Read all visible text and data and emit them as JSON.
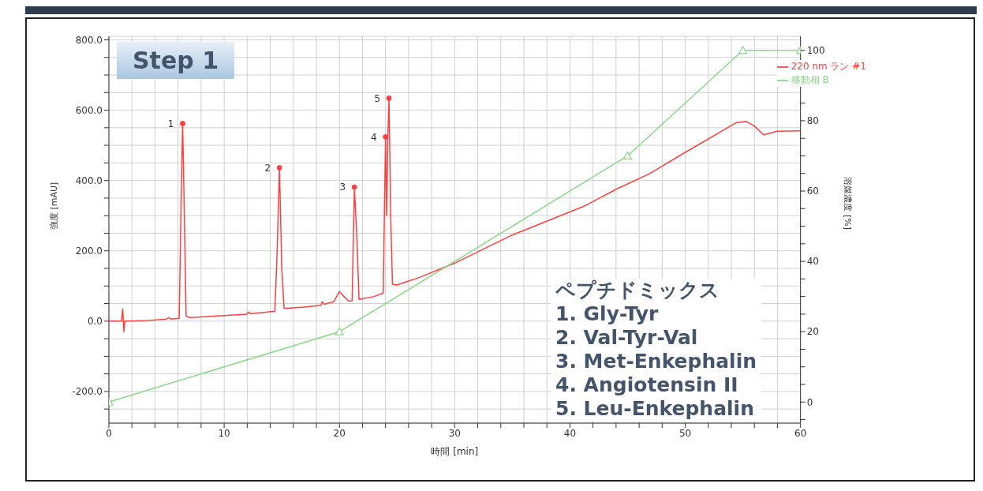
{
  "chart_data": {
    "type": "line",
    "title": "Step 1",
    "xlabel": "時間 [min]",
    "ylabel": "強度 [mAU]",
    "y2label": "溶媒濃度 [%]",
    "series": [
      {
        "name": "220 nm ラン #1",
        "color": "#ff4040",
        "marker": "none",
        "x": [
          0,
          1.1,
          1.2,
          1.3,
          1.4,
          3,
          5,
          5.2,
          5.4,
          6.1,
          6.3,
          6.4,
          6.55,
          6.7,
          7,
          10,
          12,
          12.1,
          12.3,
          14.4,
          14.6,
          14.8,
          15,
          15.2,
          17,
          18.4,
          18.5,
          18.7,
          19.5,
          20,
          20.4,
          20.8,
          21.1,
          21.3,
          21.5,
          21.7,
          23,
          23.8,
          24,
          24.1,
          24.2,
          24.3,
          24.45,
          24.6,
          25,
          27,
          30,
          35,
          41.3,
          44,
          46.9,
          50,
          54.4,
          55.3,
          56,
          56.8,
          58,
          60
        ],
        "values": [
          0,
          0,
          35,
          -30,
          0,
          1,
          6,
          10,
          6,
          8,
          400,
          562,
          300,
          15,
          10,
          16,
          20,
          26,
          21,
          28,
          200,
          436,
          150,
          36,
          40,
          45,
          55,
          48,
          55,
          84,
          70,
          57,
          58,
          381,
          250,
          62,
          70,
          80,
          524,
          300,
          520,
          634,
          300,
          105,
          103,
          125,
          165,
          245,
          328,
          375,
          419,
          480,
          564,
          568,
          555,
          530,
          540,
          541
        ]
      },
      {
        "name": "移動相 B",
        "color": "#88d888",
        "marker": "triangle",
        "axis": "y2",
        "x": [
          0,
          20,
          45,
          55,
          60
        ],
        "values": [
          0,
          20,
          70,
          100,
          100
        ]
      }
    ],
    "xlim": [
      0,
      60
    ],
    "xticks": [
      0,
      {
        "value": 2,
        "label": null
      },
      {
        "value": 4,
        "label": null
      },
      {
        "value": 6,
        "label": null
      },
      {
        "value": 8,
        "label": null
      },
      10,
      {
        "value": 12,
        "label": null
      },
      {
        "value": 14,
        "label": null
      },
      {
        "value": 16,
        "label": null
      },
      {
        "value": 18,
        "label": null
      },
      20,
      {
        "value": 22,
        "label": null
      },
      {
        "value": 24,
        "label": null
      },
      {
        "value": 26,
        "label": null
      },
      {
        "value": 28,
        "label": null
      },
      30,
      {
        "value": 32,
        "label": null
      },
      {
        "value": 34,
        "label": null
      },
      {
        "value": 36,
        "label": null
      },
      {
        "value": 38,
        "label": null
      },
      40,
      {
        "value": 42,
        "label": null
      },
      {
        "value": 44,
        "label": null
      },
      {
        "value": 46,
        "label": null
      },
      {
        "value": 48,
        "label": null
      },
      50,
      {
        "value": 52,
        "label": null
      },
      {
        "value": 54,
        "label": null
      },
      {
        "value": 56,
        "label": null
      },
      {
        "value": 58,
        "label": null
      },
      60
    ],
    "ylim": [
      -290,
      810
    ],
    "yticks": [
      {
        "value": -250,
        "label": null
      },
      {
        "value": -200,
        "label": "-200.0"
      },
      {
        "value": -150,
        "label": null
      },
      {
        "value": -100,
        "label": null
      },
      {
        "value": -50,
        "label": null
      },
      {
        "value": 0,
        "label": "0.0"
      },
      {
        "value": 50,
        "label": null
      },
      {
        "value": 100,
        "label": null
      },
      {
        "value": 150,
        "label": null
      },
      {
        "value": 200,
        "label": "200.0"
      },
      {
        "value": 250,
        "label": null
      },
      {
        "value": 300,
        "label": null
      },
      {
        "value": 350,
        "label": null
      },
      {
        "value": 400,
        "label": "400.0"
      },
      {
        "value": 450,
        "label": null
      },
      {
        "value": 500,
        "label": null
      },
      {
        "value": 550,
        "label": null
      },
      {
        "value": 600,
        "label": "600.0"
      },
      {
        "value": 650,
        "label": null
      },
      {
        "value": 700,
        "label": null
      },
      {
        "value": 750,
        "label": null
      },
      {
        "value": 800,
        "label": "800.0"
      }
    ],
    "y2lim": [
      -6,
      104
    ],
    "y2ticks": [
      {
        "value": -5,
        "label": null
      },
      0,
      {
        "value": 5,
        "label": null
      },
      {
        "value": 10,
        "label": null
      },
      {
        "value": 15,
        "label": null
      },
      20,
      {
        "value": 25,
        "label": null
      },
      {
        "value": 30,
        "label": null
      },
      {
        "value": 35,
        "label": null
      },
      40,
      {
        "value": 45,
        "label": null
      },
      {
        "value": 50,
        "label": null
      },
      {
        "value": 55,
        "label": null
      },
      60,
      {
        "value": 65,
        "label": null
      },
      {
        "value": 70,
        "label": null
      },
      {
        "value": 75,
        "label": null
      },
      80,
      {
        "value": 85,
        "label": null
      },
      {
        "value": 90,
        "label": null
      },
      {
        "value": 95,
        "label": null
      },
      100
    ],
    "grid": true,
    "legend": "top right",
    "annotations": [
      {
        "text": "1",
        "x": 6.4,
        "y": 562
      },
      {
        "text": "2",
        "x": 14.8,
        "y": 436
      },
      {
        "text": "3",
        "x": 21.3,
        "y": 381
      },
      {
        "text": "4",
        "x": 24.0,
        "y": 524
      },
      {
        "text": "5",
        "x": 24.3,
        "y": 634
      },
      "ペプチドミックス",
      "1. Gly-Tyr",
      "2. Val-Tyr-Val",
      "3. Met-Enkephalin",
      "4. Angiotensin II",
      "5. Leu-Enkephalin"
    ]
  }
}
